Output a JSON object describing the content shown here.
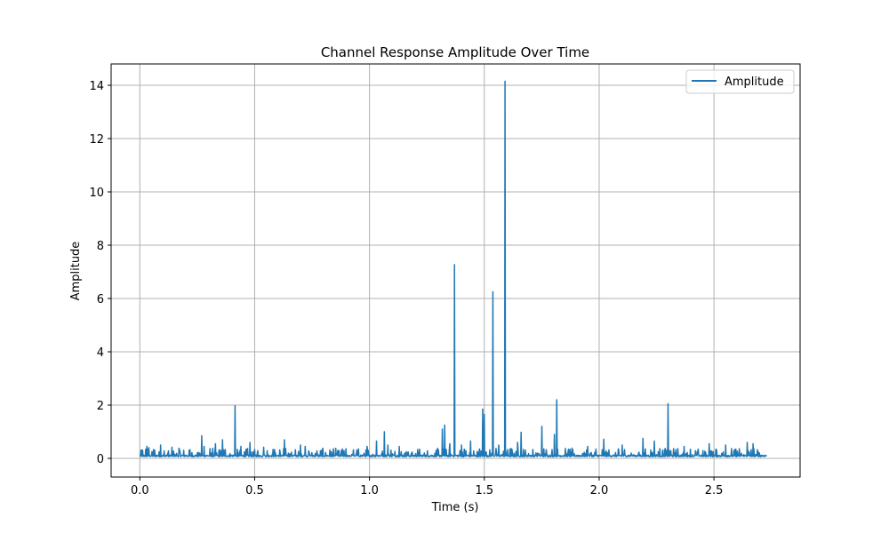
{
  "chart_data": {
    "type": "line",
    "title": "Channel Response Amplitude Over Time",
    "xlabel": "Time (s)",
    "ylabel": "Amplitude",
    "xlim": [
      -0.125,
      2.875
    ],
    "ylim": [
      -0.7,
      14.8
    ],
    "x_ticks": [
      0.0,
      0.5,
      1.0,
      1.5,
      2.0,
      2.5
    ],
    "x_tick_labels": [
      "0.0",
      "0.5",
      "1.0",
      "1.5",
      "2.0",
      "2.5"
    ],
    "y_ticks": [
      0,
      2,
      4,
      6,
      8,
      10,
      12,
      14
    ],
    "y_tick_labels": [
      "0",
      "2",
      "4",
      "6",
      "8",
      "10",
      "12",
      "14"
    ],
    "grid": true,
    "legend_position": "top-right",
    "colors": {
      "line": "#1f77b4",
      "grid": "#b0b0b0",
      "axes": "#000000"
    },
    "series": [
      {
        "name": "Amplitude",
        "x_range": [
          0.0,
          2.73
        ],
        "baseline": 0.1,
        "noise_max": 0.35,
        "peaks": [
          [
            0.03,
            0.45
          ],
          [
            0.04,
            0.4
          ],
          [
            0.09,
            0.5
          ],
          [
            0.14,
            0.42
          ],
          [
            0.17,
            0.38
          ],
          [
            0.27,
            0.85
          ],
          [
            0.28,
            0.45
          ],
          [
            0.33,
            0.55
          ],
          [
            0.36,
            0.7
          ],
          [
            0.414,
            1.97
          ],
          [
            0.44,
            0.45
          ],
          [
            0.48,
            0.6
          ],
          [
            0.54,
            0.42
          ],
          [
            0.63,
            0.7
          ],
          [
            0.7,
            0.5
          ],
          [
            0.72,
            0.45
          ],
          [
            0.99,
            0.45
          ],
          [
            1.03,
            0.65
          ],
          [
            1.065,
            1.0
          ],
          [
            1.08,
            0.5
          ],
          [
            1.13,
            0.45
          ],
          [
            1.318,
            1.1
          ],
          [
            1.327,
            1.25
          ],
          [
            1.35,
            0.55
          ],
          [
            1.37,
            7.27
          ],
          [
            1.4,
            0.5
          ],
          [
            1.44,
            0.65
          ],
          [
            1.493,
            1.85
          ],
          [
            1.5,
            1.65
          ],
          [
            1.537,
            6.25
          ],
          [
            1.563,
            0.5
          ],
          [
            1.59,
            14.15
          ],
          [
            1.645,
            0.6
          ],
          [
            1.66,
            0.98
          ],
          [
            1.75,
            1.2
          ],
          [
            1.805,
            0.9
          ],
          [
            1.816,
            2.2
          ],
          [
            1.95,
            0.45
          ],
          [
            2.02,
            0.72
          ],
          [
            2.1,
            0.5
          ],
          [
            2.19,
            0.75
          ],
          [
            2.24,
            0.65
          ],
          [
            2.3,
            2.05
          ],
          [
            2.37,
            0.45
          ],
          [
            2.48,
            0.55
          ],
          [
            2.55,
            0.5
          ],
          [
            2.645,
            0.6
          ],
          [
            2.67,
            0.55
          ]
        ]
      }
    ]
  }
}
